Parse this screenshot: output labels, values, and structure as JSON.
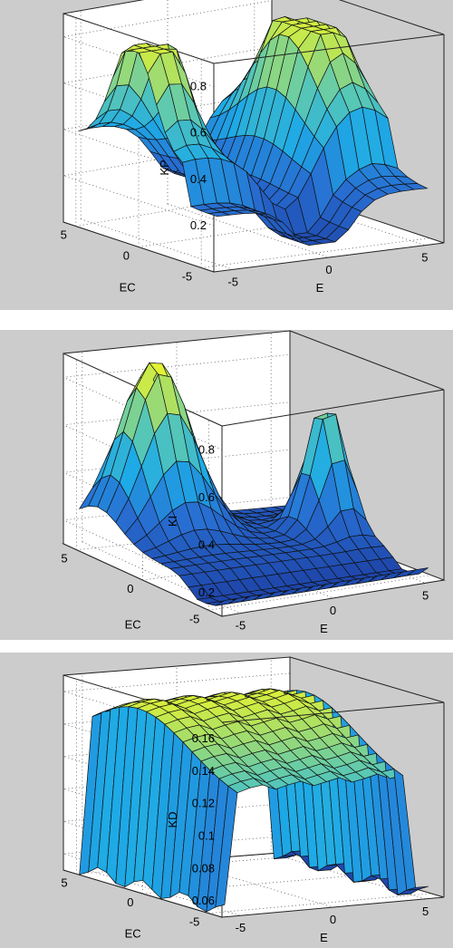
{
  "chart_data": [
    {
      "type": "surface",
      "zlabel": "KP",
      "xlabel": "E",
      "ylabel": "EC",
      "xlim": [
        -6,
        6
      ],
      "ylim": [
        -6,
        6
      ],
      "zlim": [
        0,
        0.9
      ],
      "xticks": [
        "-5",
        "0",
        "5"
      ],
      "yticks": [
        "-5",
        "0",
        "5"
      ],
      "zticks": [
        "0.2",
        "0.4",
        "0.6",
        "0.8"
      ],
      "ztick_values": [
        0.2,
        0.4,
        0.6,
        0.8
      ],
      "surface_model": "kp",
      "grid": true
    },
    {
      "type": "surface",
      "zlabel": "KI",
      "xlabel": "E",
      "ylabel": "EC",
      "xlim": [
        -6,
        6
      ],
      "ylim": [
        -6,
        6
      ],
      "zlim": [
        0.1,
        0.9
      ],
      "xticks": [
        "-5",
        "0",
        "5"
      ],
      "yticks": [
        "-5",
        "0",
        "5"
      ],
      "zticks": [
        "0.2",
        "0.4",
        "0.6",
        "0.8"
      ],
      "ztick_values": [
        0.2,
        0.4,
        0.6,
        0.8
      ],
      "surface_model": "ki",
      "grid": true
    },
    {
      "type": "surface",
      "zlabel": "KD",
      "xlabel": "E",
      "ylabel": "EC",
      "xlim": [
        -6,
        6
      ],
      "ylim": [
        -6,
        6
      ],
      "zlim": [
        0.05,
        0.17
      ],
      "xticks": [
        "-5",
        "0",
        "5"
      ],
      "yticks": [
        "-5",
        "0",
        "5"
      ],
      "zticks": [
        "0.06",
        "0.08",
        "0.1",
        "0.12",
        "0.14",
        "0.16"
      ],
      "ztick_values": [
        0.06,
        0.08,
        0.1,
        0.12,
        0.14,
        0.16
      ],
      "surface_model": "kd",
      "grid": true
    }
  ]
}
